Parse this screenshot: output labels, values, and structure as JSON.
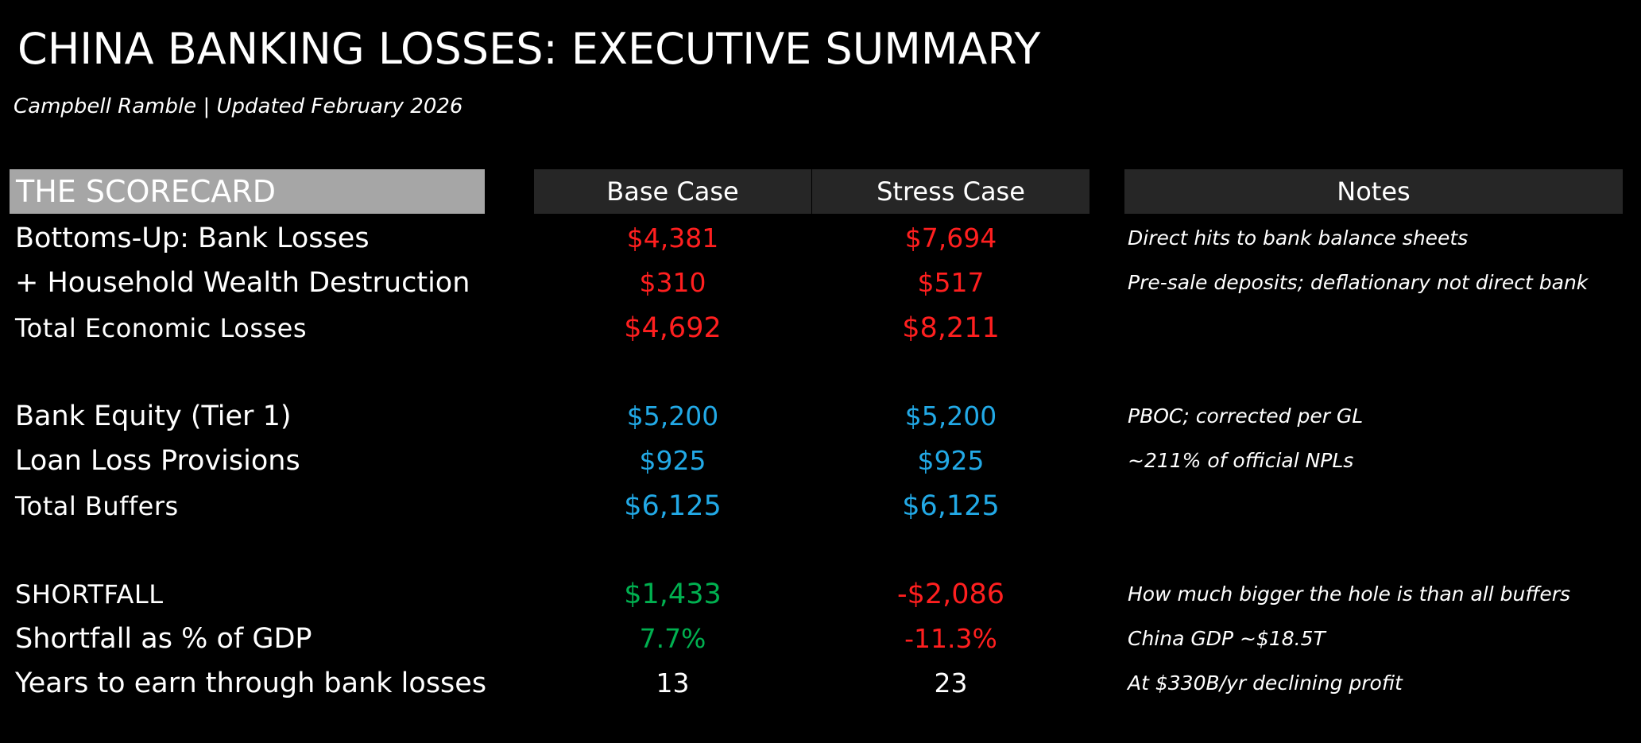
{
  "title": "CHINA BANKING LOSSES: EXECUTIVE SUMMARY",
  "subtitle": "Campbell Ramble | Updated February 2026",
  "colors": {
    "loss": "#ff1f1f",
    "buffer": "#22a9e6",
    "positive": "#00b050",
    "neutral": "#ffffff",
    "header_label_bg": "#a6a6a6",
    "header_bg": "#262626"
  },
  "headers": {
    "scorecard": "THE SCORECARD",
    "base": "Base Case",
    "stress": "Stress Case",
    "notes": "Notes"
  },
  "rows": [
    {
      "label": "Bottoms-Up: Bank Losses",
      "base": "$4,381",
      "stress": "$7,694",
      "note": "Direct hits to bank balance sheets"
    },
    {
      "label": "+ Household Wealth Destruction",
      "base": "$310",
      "stress": "$517",
      "note": "Pre-sale deposits; deflationary not direct bank"
    },
    {
      "label": "Total Economic Losses",
      "base": "$4,692",
      "stress": "$8,211",
      "note": ""
    },
    {
      "label": "Bank Equity (Tier 1)",
      "base": "$5,200",
      "stress": "$5,200",
      "note": "PBOC; corrected per GL"
    },
    {
      "label": "Loan Loss Provisions",
      "base": "$925",
      "stress": "$925",
      "note": "~211% of official NPLs"
    },
    {
      "label": "Total Buffers",
      "base": "$6,125",
      "stress": "$6,125",
      "note": ""
    },
    {
      "label": "SHORTFALL",
      "base": "$1,433",
      "stress": "-$2,086",
      "note": "How much bigger the hole is than all buffers"
    },
    {
      "label": "Shortfall as % of GDP",
      "base": "7.7%",
      "stress": "-11.3%",
      "note": "China GDP ~$18.5T"
    },
    {
      "label": "Years to earn through bank losses",
      "base": "13",
      "stress": "23",
      "note": "At $330B/yr declining profit"
    }
  ]
}
